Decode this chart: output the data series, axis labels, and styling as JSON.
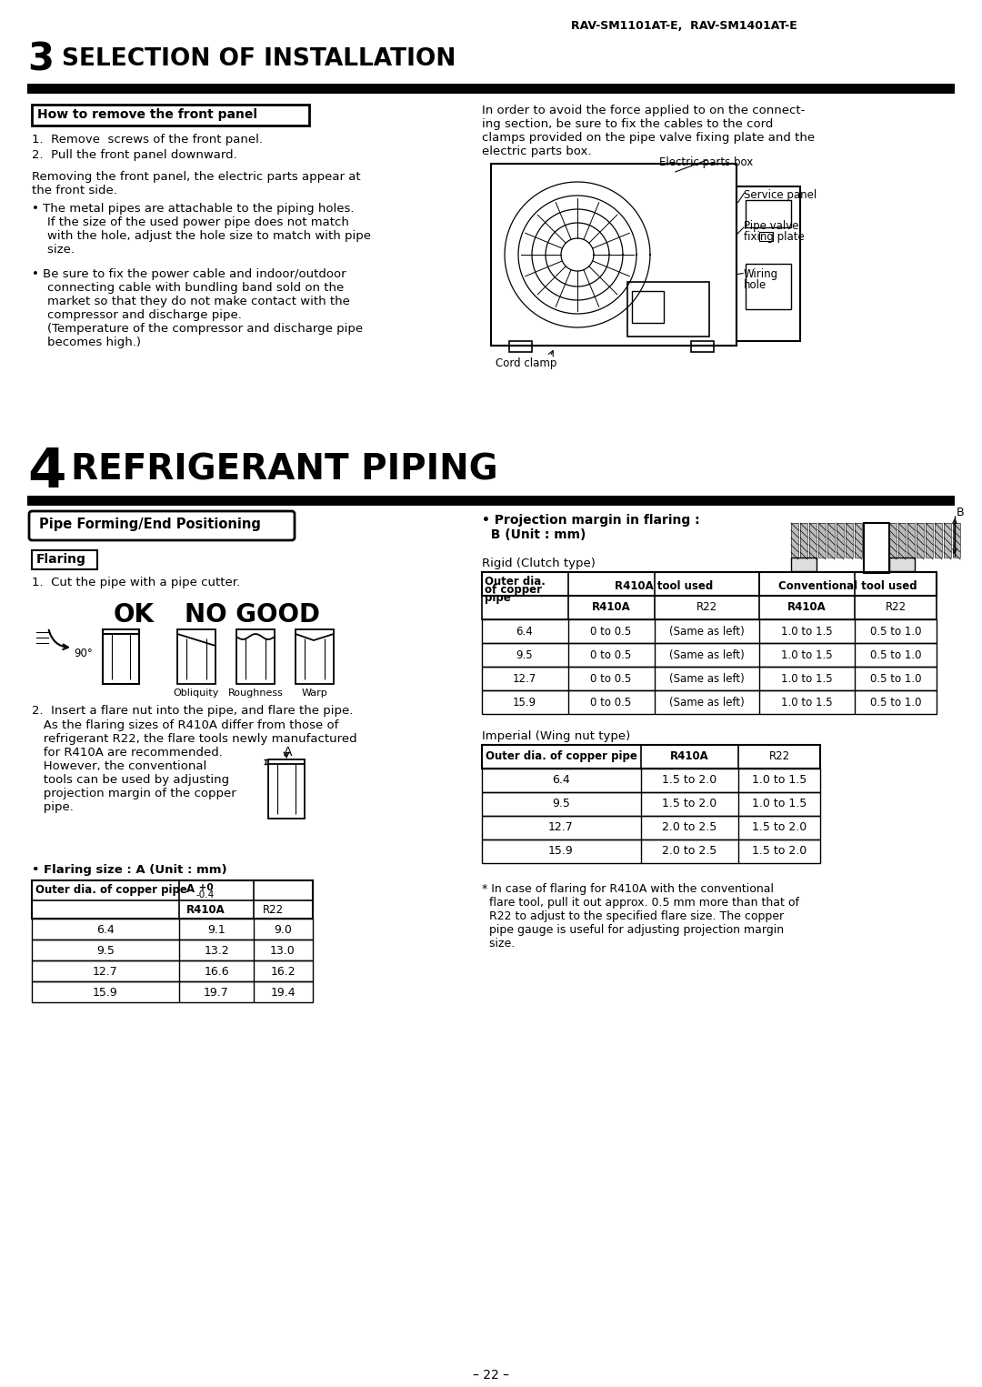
{
  "page_header": "RAV-SM1101AT-E,  RAV-SM1401AT-E",
  "section3_box_label": "How to remove the front panel",
  "section3_steps": [
    "1.  Remove  screws of the front panel.",
    "2.  Pull the front panel downward."
  ],
  "section3_para1": "Removing the front panel, the electric parts appear at\nthe front side.",
  "section3_bullet1": "The metal pipes are attachable to the piping holes.\n    If the size of the used power pipe does not match\n    with the hole, adjust the hole size to match with pipe\n    size.",
  "section3_bullet2": "Be sure to fix the power cable and indoor/outdoor\n    connecting cable with bundling band sold on the\n    market so that they do not make contact with the\n    compressor and discharge pipe.\n    (Temperature of the compressor and discharge pipe\n    becomes high.)",
  "section3_right_para": "In order to avoid the force applied to on the connect-\ning section, be sure to fix the cables to the cord\nclamps provided on the pipe valve fixing plate and the\nelectric parts box.",
  "pipe_section_label": "Pipe Forming/End Positioning",
  "flaring_label": "Flaring",
  "flaring_step1": "1.  Cut the pipe with a pipe cutter.",
  "ok_label": "OK",
  "no_good_label": "NO GOOD",
  "angle_label": "90°",
  "diagram_sublabels": [
    "Obliquity",
    "Roughness",
    "Warp"
  ],
  "flaring_step2": "2.  Insert a flare nut into the pipe, and flare the pipe.",
  "flaring_step2_para1": "   As the flaring sizes of R410A differ from those of",
  "flaring_step2_para2": "   refrigerant R22, the flare tools newly manufactured",
  "flaring_step2_para3": "   for R410A are recommended.",
  "flaring_step2_para4": "   However, the conventional",
  "flaring_step2_para5": "   tools can be used by adjusting",
  "flaring_step2_para6": "   projection margin of the copper",
  "flaring_step2_para7": "   pipe.",
  "flaring_size_label": "• Flaring size : A (Unit : mm)",
  "flaring_table_rows": [
    [
      "6.4",
      "9.1",
      "9.0"
    ],
    [
      "9.5",
      "13.2",
      "13.0"
    ],
    [
      "12.7",
      "16.6",
      "16.2"
    ],
    [
      "15.9",
      "19.7",
      "19.4"
    ]
  ],
  "projection_label1": "• Projection margin in flaring :",
  "projection_label2": "  B (Unit : mm)",
  "rigid_label": "Rigid (Clutch type)",
  "rigid_table_rows": [
    [
      "6.4",
      "0 to 0.5",
      "(Same as left)",
      "1.0 to 1.5",
      "0.5 to 1.0"
    ],
    [
      "9.5",
      "0 to 0.5",
      "(Same as left)",
      "1.0 to 1.5",
      "0.5 to 1.0"
    ],
    [
      "12.7",
      "0 to 0.5",
      "(Same as left)",
      "1.0 to 1.5",
      "0.5 to 1.0"
    ],
    [
      "15.9",
      "0 to 0.5",
      "(Same as left)",
      "1.0 to 1.5",
      "0.5 to 1.0"
    ]
  ],
  "imperial_label": "Imperial (Wing nut type)",
  "imperial_table_rows": [
    [
      "6.4",
      "1.5 to 2.0",
      "1.0 to 1.5"
    ],
    [
      "9.5",
      "1.5 to 2.0",
      "1.0 to 1.5"
    ],
    [
      "12.7",
      "2.0 to 2.5",
      "1.5 to 2.0"
    ],
    [
      "15.9",
      "2.0 to 2.5",
      "1.5 to 2.0"
    ]
  ],
  "footnote_line1": "* In case of flaring for R410A with the conventional",
  "footnote_line2": "  flare tool, pull it out approx. 0.5 mm more than that of",
  "footnote_line3": "  R22 to adjust to the specified flare size. The copper",
  "footnote_line4": "  pipe gauge is useful for adjusting projection margin",
  "footnote_line5": "  size.",
  "page_number": "– 22 –"
}
